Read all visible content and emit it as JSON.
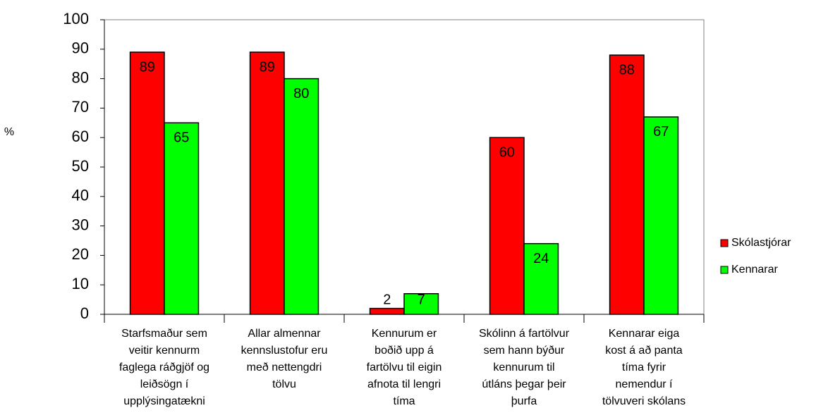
{
  "chart_data": {
    "type": "bar",
    "y_label": "%",
    "categories": [
      "Starfsmaður sem\nveitir kennurm\nfaglega ráðgjöf og\nleiðsögn í\nupplýsingatækni",
      "Allar almennar\nkennslustofur eru\nmeð nettengdri\ntölvu",
      "Kennurum er\nboðið upp á\nfartölvu til eigin\nafnota til lengri\ntíma",
      "Skólinn á fartölvur\nsem hann býður\nkennurum til\nútláns þegar þeir\nþurfa",
      "Kennarar eiga\nkost á að panta\ntíma fyrir\nnemendur í\ntölvuveri skólans"
    ],
    "series": [
      {
        "name": "Skólastjórar",
        "color": "#ff0000",
        "values": [
          89,
          89,
          2,
          60,
          88
        ]
      },
      {
        "name": "Kennarar",
        "color": "#00ff00",
        "values": [
          65,
          80,
          7,
          24,
          67
        ]
      }
    ],
    "ylim": [
      0,
      100
    ],
    "yticks": [
      0,
      10,
      20,
      30,
      40,
      50,
      60,
      70,
      80,
      90,
      100
    ],
    "legend": "right"
  }
}
